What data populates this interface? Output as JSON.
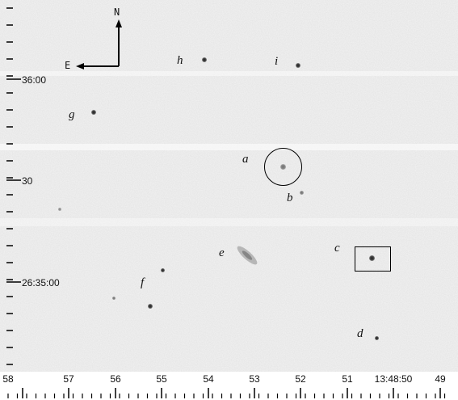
{
  "compass": {
    "north": "N",
    "east": "E"
  },
  "dec_labels": [
    "36:00",
    "30",
    "26:35:00"
  ],
  "ra_labels": [
    "58",
    "57",
    "56",
    "55",
    "54",
    "53",
    "52",
    "51",
    "13:48:50",
    "49"
  ],
  "objects": [
    {
      "id": "h",
      "label": "h"
    },
    {
      "id": "i",
      "label": "i"
    },
    {
      "id": "g",
      "label": "g"
    },
    {
      "id": "a",
      "label": "a"
    },
    {
      "id": "b",
      "label": "b"
    },
    {
      "id": "e",
      "label": "e"
    },
    {
      "id": "c",
      "label": "c"
    },
    {
      "id": "f",
      "label": "f"
    },
    {
      "id": "d",
      "label": "d"
    }
  ]
}
